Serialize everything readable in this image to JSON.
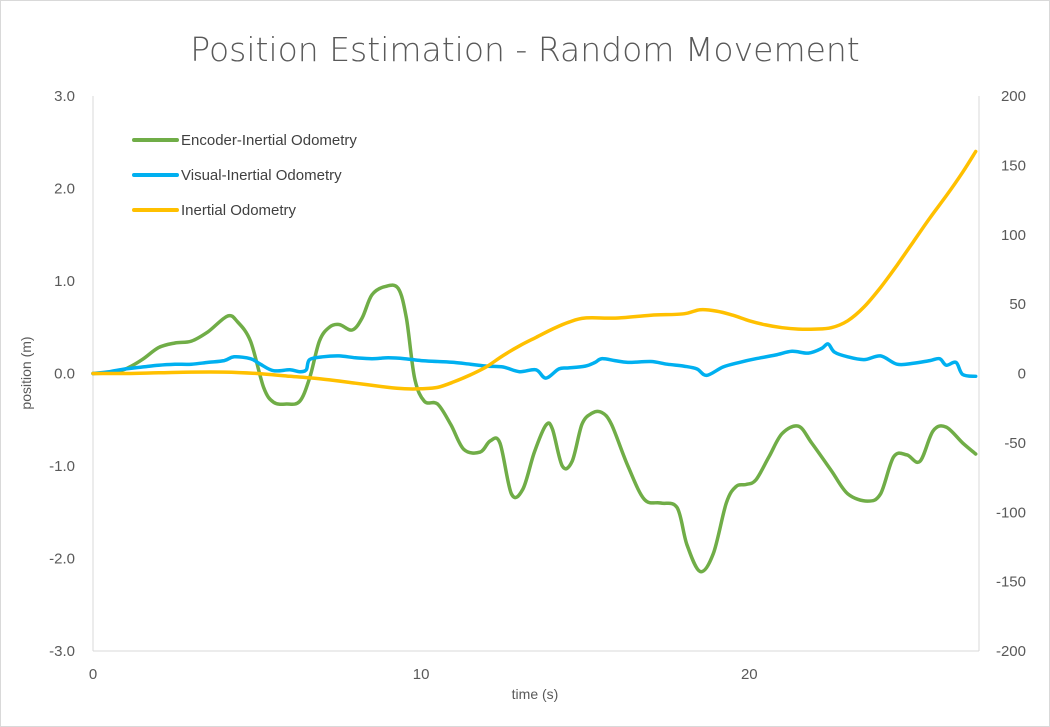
{
  "chart_data": {
    "type": "line",
    "title": "Position Estimation - Random Movement",
    "xlabel": "time (s)",
    "ylabel": "position (m)",
    "xlim": [
      0,
      27
    ],
    "ylim": [
      -3.0,
      3.0
    ],
    "y2lim": [
      -200,
      200
    ],
    "xticks": [
      "0",
      "10",
      "20"
    ],
    "xtick_values": [
      0,
      10,
      20
    ],
    "yticks": [
      "3.0",
      "2.0",
      "1.0",
      "0.0",
      "-1.0",
      "-2.0",
      "-3.0"
    ],
    "ytick_values": [
      3,
      2,
      1,
      0,
      -1,
      -2,
      -3
    ],
    "y2ticks": [
      "200",
      "150",
      "100",
      "50",
      "0",
      "-50",
      "-100",
      "-150",
      "-200"
    ],
    "y2tick_values": [
      200,
      150,
      100,
      50,
      0,
      -50,
      -100,
      -150,
      -200
    ],
    "grid": false,
    "legend_position": "top-left",
    "series": [
      {
        "name": "Encoder-Inertial Odometry",
        "color": "#70ad47",
        "axis": "left",
        "x": [
          0,
          0.6,
          1.0,
          1.5,
          2.0,
          2.5,
          3.0,
          3.5,
          4.1,
          4.4,
          4.8,
          5.2,
          5.5,
          5.9,
          6.3,
          6.6,
          6.9,
          7.2,
          7.5,
          7.9,
          8.2,
          8.5,
          8.9,
          9.3,
          9.55,
          9.8,
          10.1,
          10.5,
          10.9,
          11.3,
          11.8,
          12.1,
          12.4,
          12.75,
          13.1,
          13.45,
          13.8,
          14.0,
          14.3,
          14.6,
          14.9,
          15.2,
          15.5,
          15.8,
          16.3,
          16.8,
          17.3,
          17.8,
          18.1,
          18.5,
          18.9,
          19.3,
          19.6,
          19.9,
          20.2,
          20.6,
          21.0,
          21.5,
          21.9,
          22.5,
          23.0,
          23.6,
          24.0,
          24.4,
          24.8,
          25.2,
          25.6,
          26.0,
          26.5,
          26.9
        ],
        "values": [
          0.0,
          0.01,
          0.05,
          0.15,
          0.28,
          0.33,
          0.35,
          0.45,
          0.62,
          0.56,
          0.35,
          -0.15,
          -0.31,
          -0.33,
          -0.3,
          -0.05,
          0.35,
          0.5,
          0.53,
          0.47,
          0.6,
          0.85,
          0.94,
          0.92,
          0.6,
          -0.05,
          -0.3,
          -0.33,
          -0.55,
          -0.82,
          -0.85,
          -0.73,
          -0.75,
          -1.3,
          -1.25,
          -0.85,
          -0.56,
          -0.6,
          -1.0,
          -0.95,
          -0.55,
          -0.43,
          -0.42,
          -0.55,
          -1.0,
          -1.36,
          -1.4,
          -1.45,
          -1.85,
          -2.14,
          -1.95,
          -1.4,
          -1.22,
          -1.2,
          -1.15,
          -0.9,
          -0.65,
          -0.57,
          -0.75,
          -1.05,
          -1.3,
          -1.38,
          -1.3,
          -0.9,
          -0.88,
          -0.95,
          -0.62,
          -0.58,
          -0.75,
          -0.87
        ]
      },
      {
        "name": "Visual-Inertial Odometry",
        "color": "#00b0f0",
        "axis": "left",
        "x": [
          0,
          0.5,
          1.0,
          1.5,
          2.0,
          2.5,
          3.0,
          3.5,
          4.0,
          4.3,
          4.8,
          5.1,
          5.5,
          6.0,
          6.3,
          6.5,
          6.6,
          7.0,
          7.5,
          8.0,
          8.5,
          9.0,
          9.5,
          10.0,
          10.5,
          11.0,
          11.5,
          12.0,
          12.5,
          13.0,
          13.5,
          13.8,
          14.2,
          14.5,
          15.0,
          15.3,
          15.5,
          15.9,
          16.3,
          17.0,
          17.5,
          18.0,
          18.4,
          18.7,
          19.2,
          19.7,
          20.2,
          20.8,
          21.3,
          21.8,
          22.2,
          22.4,
          22.6,
          23.0,
          23.5,
          24.0,
          24.5,
          25.0,
          25.5,
          25.8,
          26.0,
          26.3,
          26.5,
          26.9
        ],
        "values": [
          0.0,
          0.02,
          0.05,
          0.07,
          0.09,
          0.1,
          0.1,
          0.12,
          0.14,
          0.18,
          0.16,
          0.1,
          0.03,
          0.04,
          0.02,
          0.04,
          0.15,
          0.18,
          0.19,
          0.17,
          0.16,
          0.17,
          0.16,
          0.14,
          0.13,
          0.12,
          0.1,
          0.08,
          0.07,
          0.02,
          0.04,
          -0.05,
          0.05,
          0.06,
          0.08,
          0.12,
          0.16,
          0.14,
          0.12,
          0.13,
          0.1,
          0.08,
          0.05,
          -0.02,
          0.07,
          0.12,
          0.16,
          0.2,
          0.24,
          0.22,
          0.27,
          0.32,
          0.23,
          0.18,
          0.15,
          0.19,
          0.1,
          0.11,
          0.14,
          0.16,
          0.09,
          0.12,
          -0.01,
          -0.03
        ]
      },
      {
        "name": "Inertial Odometry",
        "color": "#ffc000",
        "axis": "right",
        "x": [
          0,
          1.0,
          2.0,
          3.0,
          4.0,
          5.0,
          6.0,
          7.0,
          8.0,
          9.0,
          9.5,
          10.0,
          10.5,
          11.0,
          11.5,
          12.0,
          12.5,
          13.0,
          13.5,
          14.0,
          14.5,
          15.0,
          16.0,
          17.0,
          18.0,
          18.5,
          19.0,
          19.5,
          20.0,
          20.5,
          21.0,
          21.5,
          22.0,
          22.5,
          23.0,
          23.5,
          24.0,
          24.5,
          25.0,
          25.5,
          26.0,
          26.5,
          26.9
        ],
        "values": [
          0,
          0,
          0.5,
          1,
          1,
          0,
          -2,
          -4,
          -7,
          -10,
          -11,
          -11,
          -10,
          -6,
          -1,
          5,
          13,
          20,
          26,
          32,
          37,
          40,
          40,
          42,
          43,
          46,
          45,
          42,
          38,
          35,
          33,
          32,
          32,
          33,
          38,
          48,
          62,
          78,
          95,
          112,
          128,
          145,
          160
        ]
      }
    ]
  }
}
